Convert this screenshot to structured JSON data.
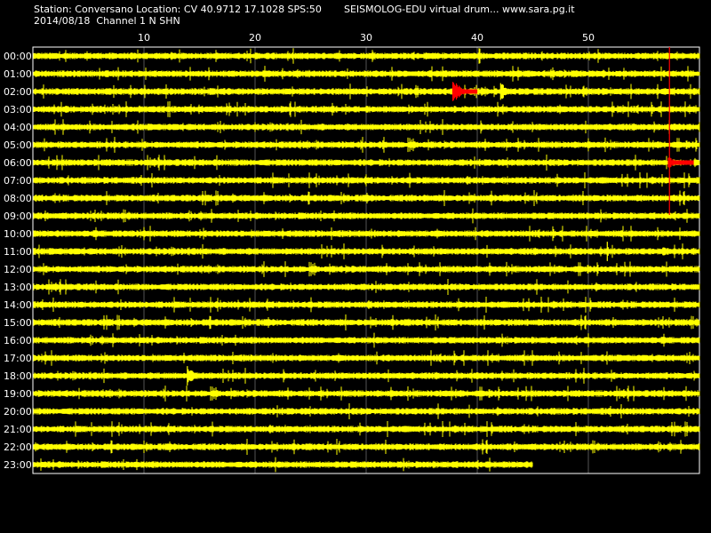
{
  "header": {
    "station_line": "Station: Conversano Location: CV 40.9712 17.1028 SPS:50",
    "brand_line": "SEISMOLOG-EDU virtual drum... www.sara.pg.it",
    "date_line": "2014/08/18  Channel 1 N SHN"
  },
  "chart_data": {
    "type": "line",
    "title": "",
    "xlabel": "",
    "ylabel": "",
    "x_unit_note": "minutes",
    "xlim": [
      0,
      60
    ],
    "x_ticks": [
      "10",
      "20",
      "30",
      "40",
      "50"
    ],
    "x_tick_values": [
      10,
      20,
      30,
      40,
      50
    ],
    "grid": true,
    "rows": [
      "00:00",
      "01:00",
      "02:00",
      "03:00",
      "04:00",
      "05:00",
      "06:00",
      "07:00",
      "08:00",
      "09:00",
      "10:00",
      "11:00",
      "12:00",
      "13:00",
      "14:00",
      "15:00",
      "16:00",
      "17:00",
      "18:00",
      "19:00",
      "20:00",
      "21:00",
      "22:00",
      "23:00"
    ],
    "last_row_end_minute": 45,
    "trace_color": "#ffff00",
    "event_color": "#ff0000",
    "grid_color": "#ffffff",
    "events": [
      {
        "row": "02:00",
        "start": 37.8,
        "end": 40.0,
        "color": "#ff0000",
        "amp": 1.0
      },
      {
        "row": "02:00",
        "start": 42.1,
        "end": 43.5,
        "color": "#ffff00",
        "amp": 0.9
      },
      {
        "row": "05:00",
        "start": 31.5,
        "end": 33.0,
        "color": "#ffff00",
        "amp": 0.35
      },
      {
        "row": "06:00",
        "start": 57.2,
        "end": 59.5,
        "color": "#ff0000",
        "amp": 0.45
      },
      {
        "row": "11:00",
        "start": 51.7,
        "end": 51.9,
        "color": "#ffff00",
        "amp": 1.2
      },
      {
        "row": "11:00",
        "start": 56.7,
        "end": 58.5,
        "color": "#ffff00",
        "amp": 0.5
      },
      {
        "row": "18:00",
        "start": 13.9,
        "end": 16.0,
        "color": "#ffff00",
        "amp": 0.75
      },
      {
        "row": "18:00",
        "start": 18.5,
        "end": 19.5,
        "color": "#ffff00",
        "amp": 0.3
      }
    ],
    "marker_line": {
      "x_minute": 57.3,
      "from_row": "00:00",
      "to_row": "09:00",
      "color": "#ff0000"
    }
  }
}
